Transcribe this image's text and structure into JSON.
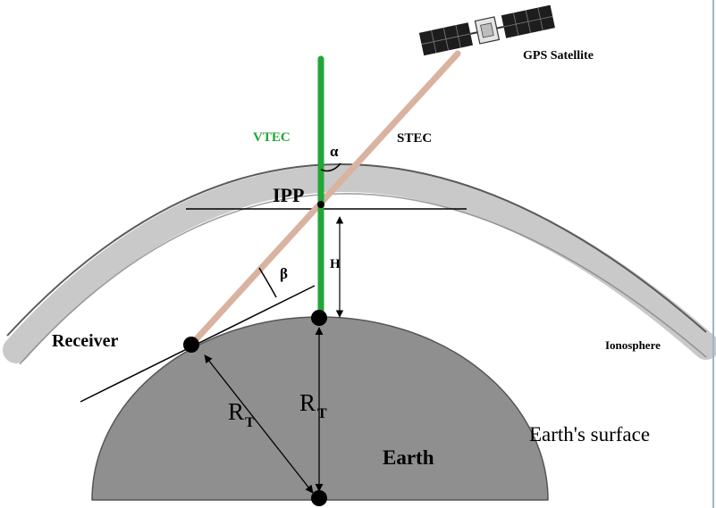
{
  "labels": {
    "gps_satellite": "GPS Satellite",
    "vtec": "VTEC",
    "stec": "STEC",
    "alpha": "α",
    "ipp": "IPP",
    "h": "H",
    "beta": "β",
    "receiver": "Receiver",
    "ionosphere": "Ionosphere",
    "rt_main": "R",
    "rt_sub": "T",
    "earth": "Earth",
    "earths_surface": "Earth's surface"
  },
  "colors": {
    "vtec_line": "#22a638",
    "vtec_text": "#22a638",
    "stec_line": "#d9b3a0",
    "earth_fill": "#8f8f8f",
    "earth_stroke": "#555555",
    "ionosphere_band": "#c9c9c9",
    "ionosphere_edge": "#5a5a5a",
    "ink": "#000000",
    "frame": "#9fb6c7"
  },
  "icons": {
    "satellite": "satellite-icon",
    "receiver_point": "receiver-dot",
    "ipp_point": "ipp-dot"
  }
}
